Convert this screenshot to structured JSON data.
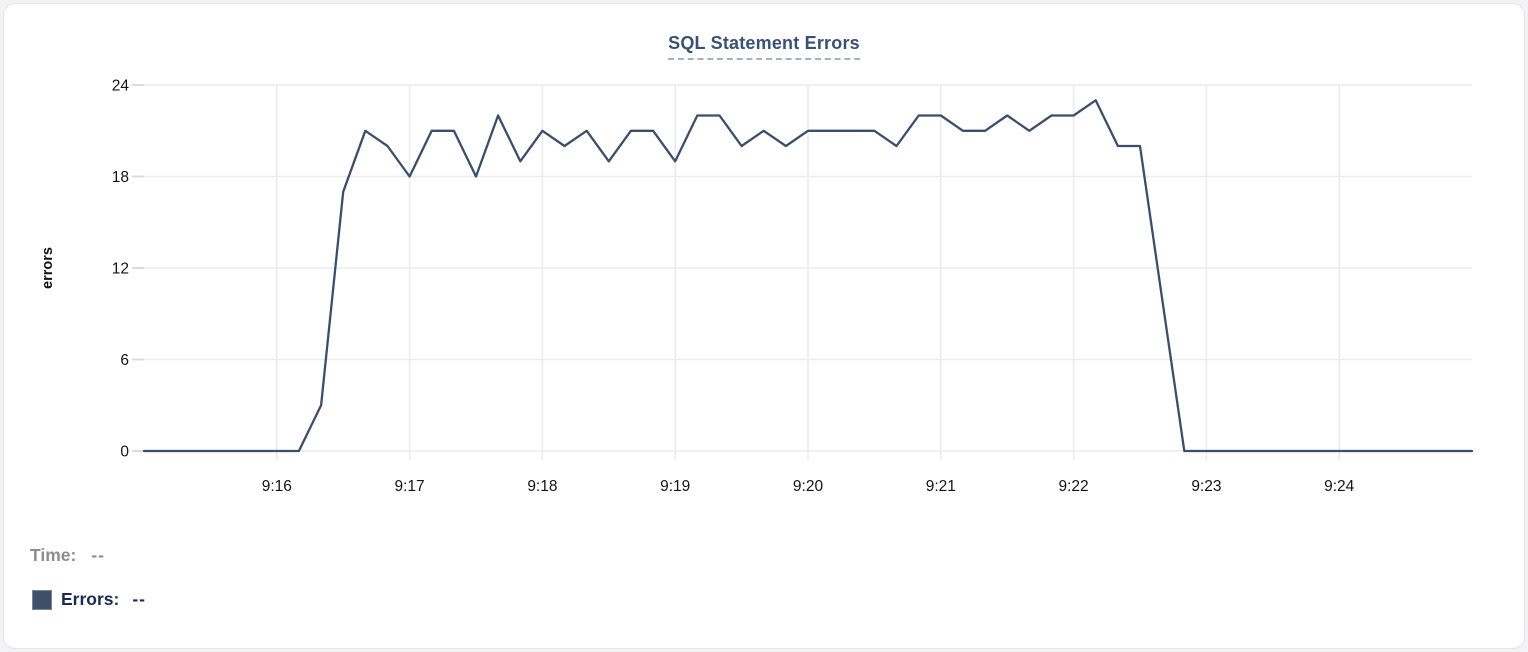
{
  "header": {
    "title": "SQL Statement Errors"
  },
  "colors": {
    "line": "#3d4e6b",
    "grid": "#ebebed",
    "tick": "#dcdcdf",
    "axis_text": "#141414",
    "title": "#3b5173",
    "title_underline": "#a3b0c6",
    "muted_text": "#8d8d8d",
    "navy_text": "#1b2b52",
    "legend_swatch": "#3e5068",
    "card_border": "#e4e4e7",
    "card_bg": "#ffffff"
  },
  "readout": {
    "time_label": "Time:",
    "time_value": "--",
    "errors_label": "Errors:",
    "errors_value": "--"
  },
  "chart_data": {
    "type": "line",
    "title": "SQL Statement Errors",
    "xlabel": "",
    "ylabel": "errors",
    "ylim": [
      0,
      24
    ],
    "yticks": [
      0,
      6,
      12,
      18,
      24
    ],
    "xticks": [
      "9:16",
      "9:17",
      "9:18",
      "9:19",
      "9:20",
      "9:21",
      "9:22",
      "9:23",
      "9:24"
    ],
    "x_range": [
      "9:15:00",
      "9:25:00"
    ],
    "interval_seconds": 10,
    "grid": true,
    "legend_position": "bottom-left",
    "series": [
      {
        "name": "Errors",
        "color": "#3d4e6b",
        "x": [
          "9:15:00",
          "9:15:10",
          "9:15:20",
          "9:15:30",
          "9:15:40",
          "9:15:50",
          "9:16:00",
          "9:16:10",
          "9:16:20",
          "9:16:30",
          "9:16:40",
          "9:16:50",
          "9:17:00",
          "9:17:10",
          "9:17:20",
          "9:17:30",
          "9:17:40",
          "9:17:50",
          "9:18:00",
          "9:18:10",
          "9:18:20",
          "9:18:30",
          "9:18:40",
          "9:18:50",
          "9:19:00",
          "9:19:10",
          "9:19:20",
          "9:19:30",
          "9:19:40",
          "9:19:50",
          "9:20:00",
          "9:20:10",
          "9:20:20",
          "9:20:30",
          "9:20:40",
          "9:20:50",
          "9:21:00",
          "9:21:10",
          "9:21:20",
          "9:21:30",
          "9:21:40",
          "9:21:50",
          "9:22:00",
          "9:22:10",
          "9:22:20",
          "9:22:30",
          "9:22:40",
          "9:22:50",
          "9:23:00",
          "9:23:10",
          "9:23:20",
          "9:23:30",
          "9:23:40",
          "9:23:50",
          "9:24:00",
          "9:24:10",
          "9:24:20",
          "9:24:30",
          "9:24:40",
          "9:24:50",
          "9:25:00"
        ],
        "values": [
          0,
          0,
          0,
          0,
          0,
          0,
          0,
          0,
          3,
          17,
          21,
          20,
          18,
          21,
          21,
          18,
          22,
          19,
          21,
          20,
          21,
          19,
          21,
          21,
          19,
          22,
          22,
          20,
          21,
          20,
          21,
          21,
          21,
          21,
          20,
          22,
          22,
          21,
          21,
          22,
          21,
          22,
          22,
          23,
          20,
          20,
          10,
          0,
          0,
          0,
          0,
          0,
          0,
          0,
          0,
          0,
          0,
          0,
          0,
          0,
          0
        ]
      }
    ]
  }
}
